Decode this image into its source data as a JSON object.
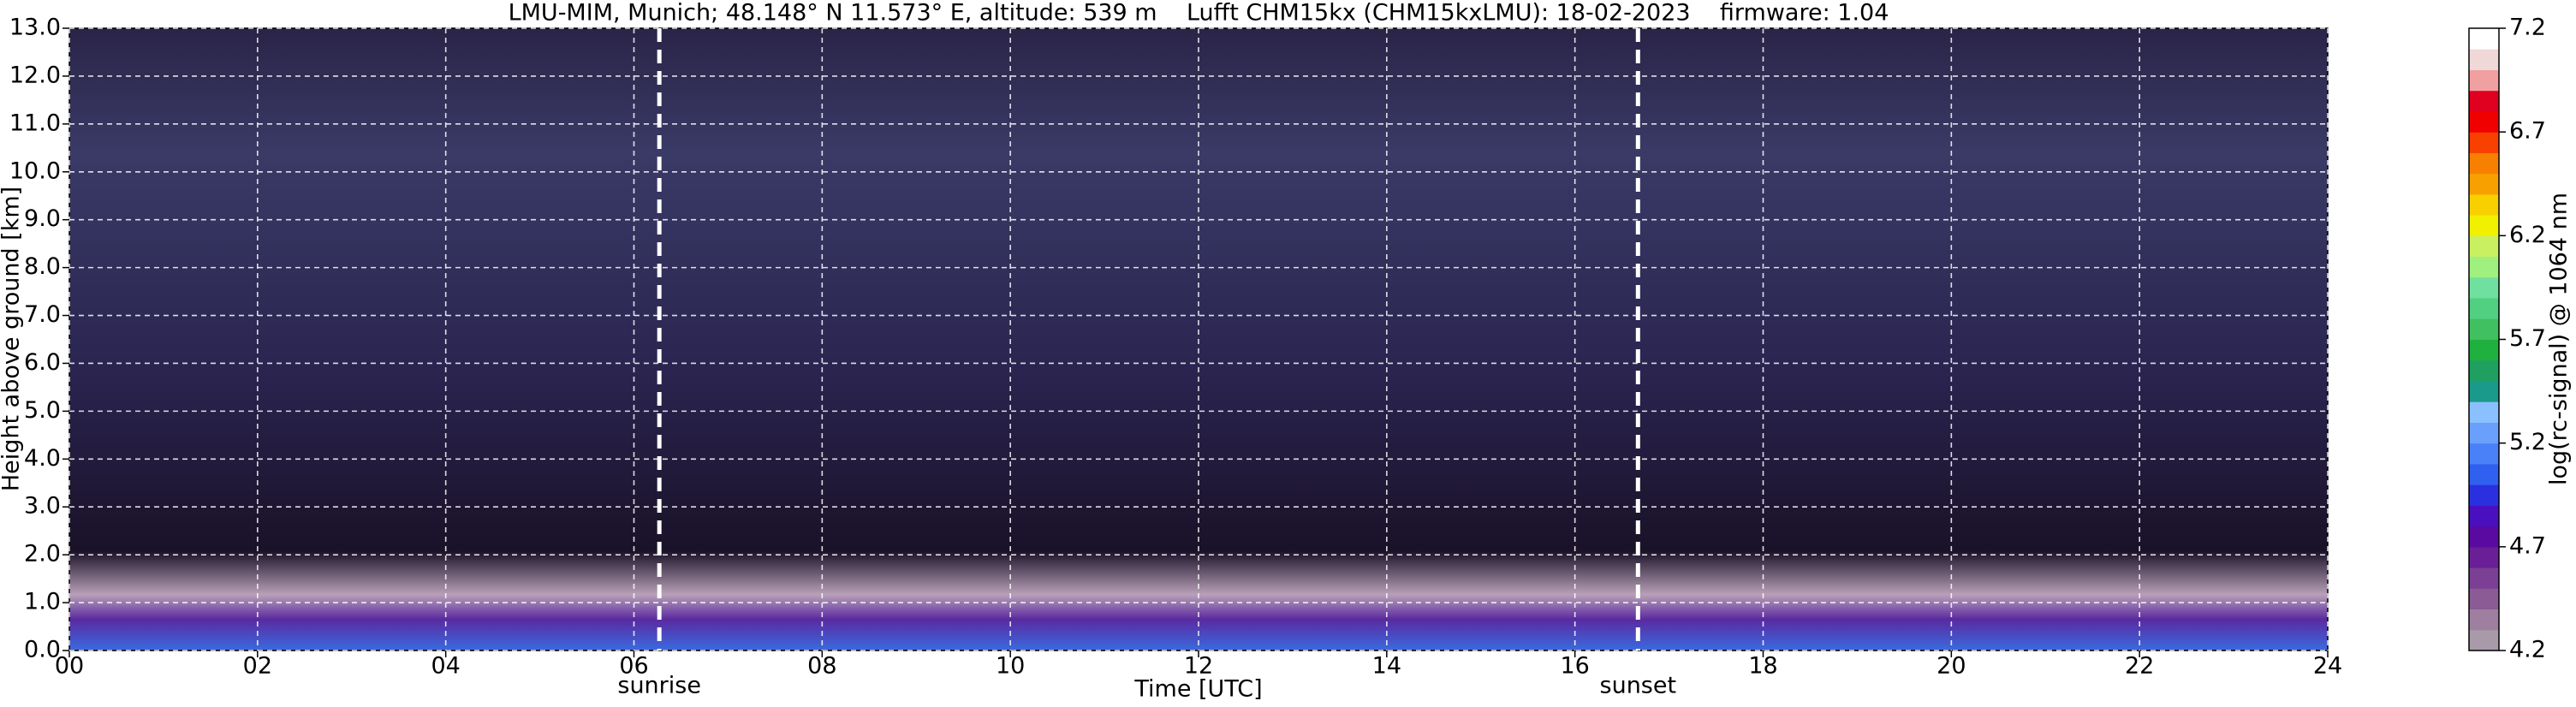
{
  "chart_data": {
    "type": "heatmap",
    "title": "LMU-MIM, Munich; 48.148° N 11.573° E, altitude: 539 m    Lufft CHM15kx (CHM15kxLMU): 18-02-2023    firmware: 1.04",
    "x_label": "Time [UTC]",
    "y_label": "Height above ground [km]",
    "colorbar_label": "log(rc-signal) @ 1064 nm",
    "xlim": [
      0,
      24
    ],
    "xticks": [
      {
        "value": 0,
        "label": "00"
      },
      {
        "value": 2,
        "label": "02"
      },
      {
        "value": 4,
        "label": "04"
      },
      {
        "value": 6,
        "label": "06"
      },
      {
        "value": 8,
        "label": "08"
      },
      {
        "value": 10,
        "label": "10"
      },
      {
        "value": 12,
        "label": "12"
      },
      {
        "value": 14,
        "label": "14"
      },
      {
        "value": 16,
        "label": "16"
      },
      {
        "value": 18,
        "label": "18"
      },
      {
        "value": 20,
        "label": "20"
      },
      {
        "value": 22,
        "label": "22"
      },
      {
        "value": 24,
        "label": "24"
      }
    ],
    "ylim": [
      0,
      13
    ],
    "yticks": [
      {
        "value": 0,
        "label": "0.0"
      },
      {
        "value": 1,
        "label": "1.0"
      },
      {
        "value": 2,
        "label": "2.0"
      },
      {
        "value": 3,
        "label": "3.0"
      },
      {
        "value": 4,
        "label": "4.0"
      },
      {
        "value": 5,
        "label": "5.0"
      },
      {
        "value": 6,
        "label": "6.0"
      },
      {
        "value": 7,
        "label": "7.0"
      },
      {
        "value": 8,
        "label": "8.0"
      },
      {
        "value": 9,
        "label": "9.0"
      },
      {
        "value": 10,
        "label": "10.0"
      },
      {
        "value": 11,
        "label": "11.0"
      },
      {
        "value": 12,
        "label": "12.0"
      },
      {
        "value": 13,
        "label": "13.0"
      }
    ],
    "grid": true,
    "annotations": [
      {
        "text": "sunrise",
        "x": 6.27
      },
      {
        "text": "sunset",
        "x": 16.67
      }
    ],
    "colorbar_lim": [
      4.2,
      7.2
    ],
    "colorbar_ticks": [
      4.2,
      4.7,
      5.2,
      5.7,
      6.2,
      6.7,
      7.2
    ],
    "colormap": [
      "#a89aa8",
      "#9f7fa0",
      "#8a5b95",
      "#7b3f94",
      "#6a1f96",
      "#5a0aa0",
      "#4a10c0",
      "#2a30e0",
      "#3060f0",
      "#4a80f8",
      "#6aa0fc",
      "#8ac0ff",
      "#1a9a8a",
      "#20a060",
      "#20b040",
      "#40c060",
      "#50d080",
      "#70e0a0",
      "#a0f080",
      "#c8f060",
      "#f0f000",
      "#f8d000",
      "#f8a000",
      "#f88000",
      "#f84000",
      "#f00000",
      "#e00020",
      "#f0a0a0",
      "#f0d8d8",
      "#ffffff"
    ]
  }
}
